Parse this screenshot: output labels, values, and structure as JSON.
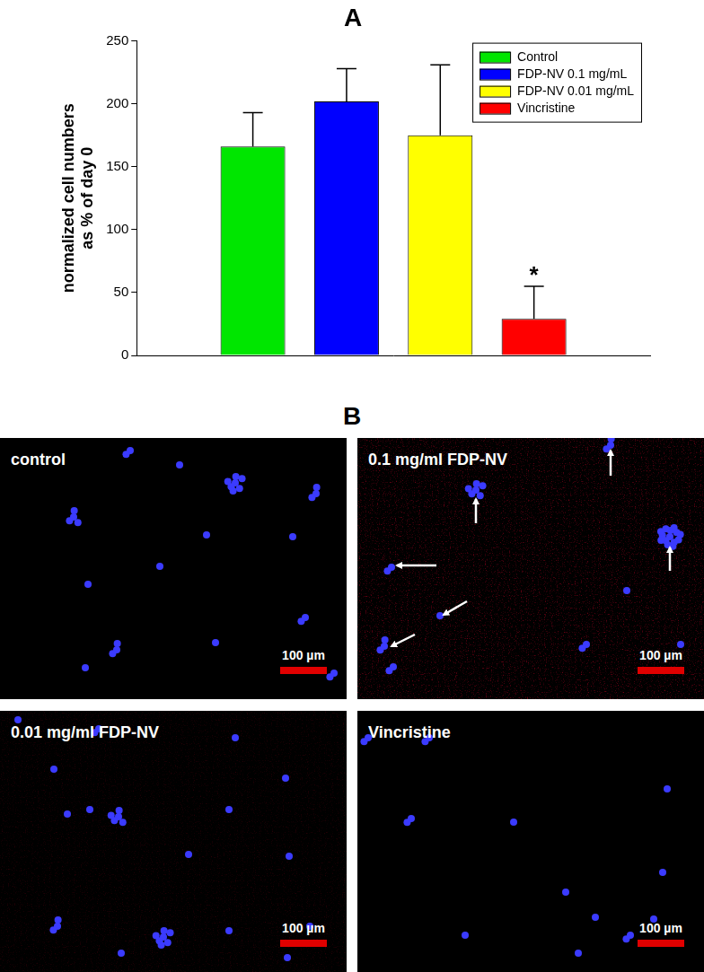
{
  "chart_data": {
    "type": "bar",
    "title": "A",
    "y_label": [
      "normalized cell numbers",
      "as % of day 0"
    ],
    "categories": [
      null
    ],
    "series": [
      {
        "name": "Control",
        "color": "#00e600",
        "values": [
          166
        ],
        "errors": [
          27
        ]
      },
      {
        "name": "FDP-NV 0.1 mg/mL",
        "color": "#0000ff",
        "values": [
          202
        ],
        "errors": [
          26
        ]
      },
      {
        "name": "FDP-NV 0.01 mg/mL",
        "color": "#ffff00",
        "values": [
          175
        ],
        "errors": [
          56
        ]
      },
      {
        "name": "Vincristine",
        "color": "#ff0000",
        "values": [
          29
        ],
        "errors": [
          26
        ],
        "annotation": "*"
      }
    ],
    "ylim": [
      0,
      250
    ],
    "yticks": [
      0,
      50,
      100,
      150,
      200,
      250
    ],
    "grid": false,
    "legend": "top-right"
  },
  "micrographs": {
    "label": "B",
    "images": [
      {
        "label": "control",
        "scale_bar": "100 µm"
      },
      {
        "label": "0.1 mg/ml FDP-NV",
        "scale_bar": "100 µm"
      },
      {
        "label": "0.01 mg/ml FDP-NV",
        "scale_bar": "100 µm"
      },
      {
        "label": "Vincristine",
        "scale_bar": "100 µm"
      }
    ]
  }
}
